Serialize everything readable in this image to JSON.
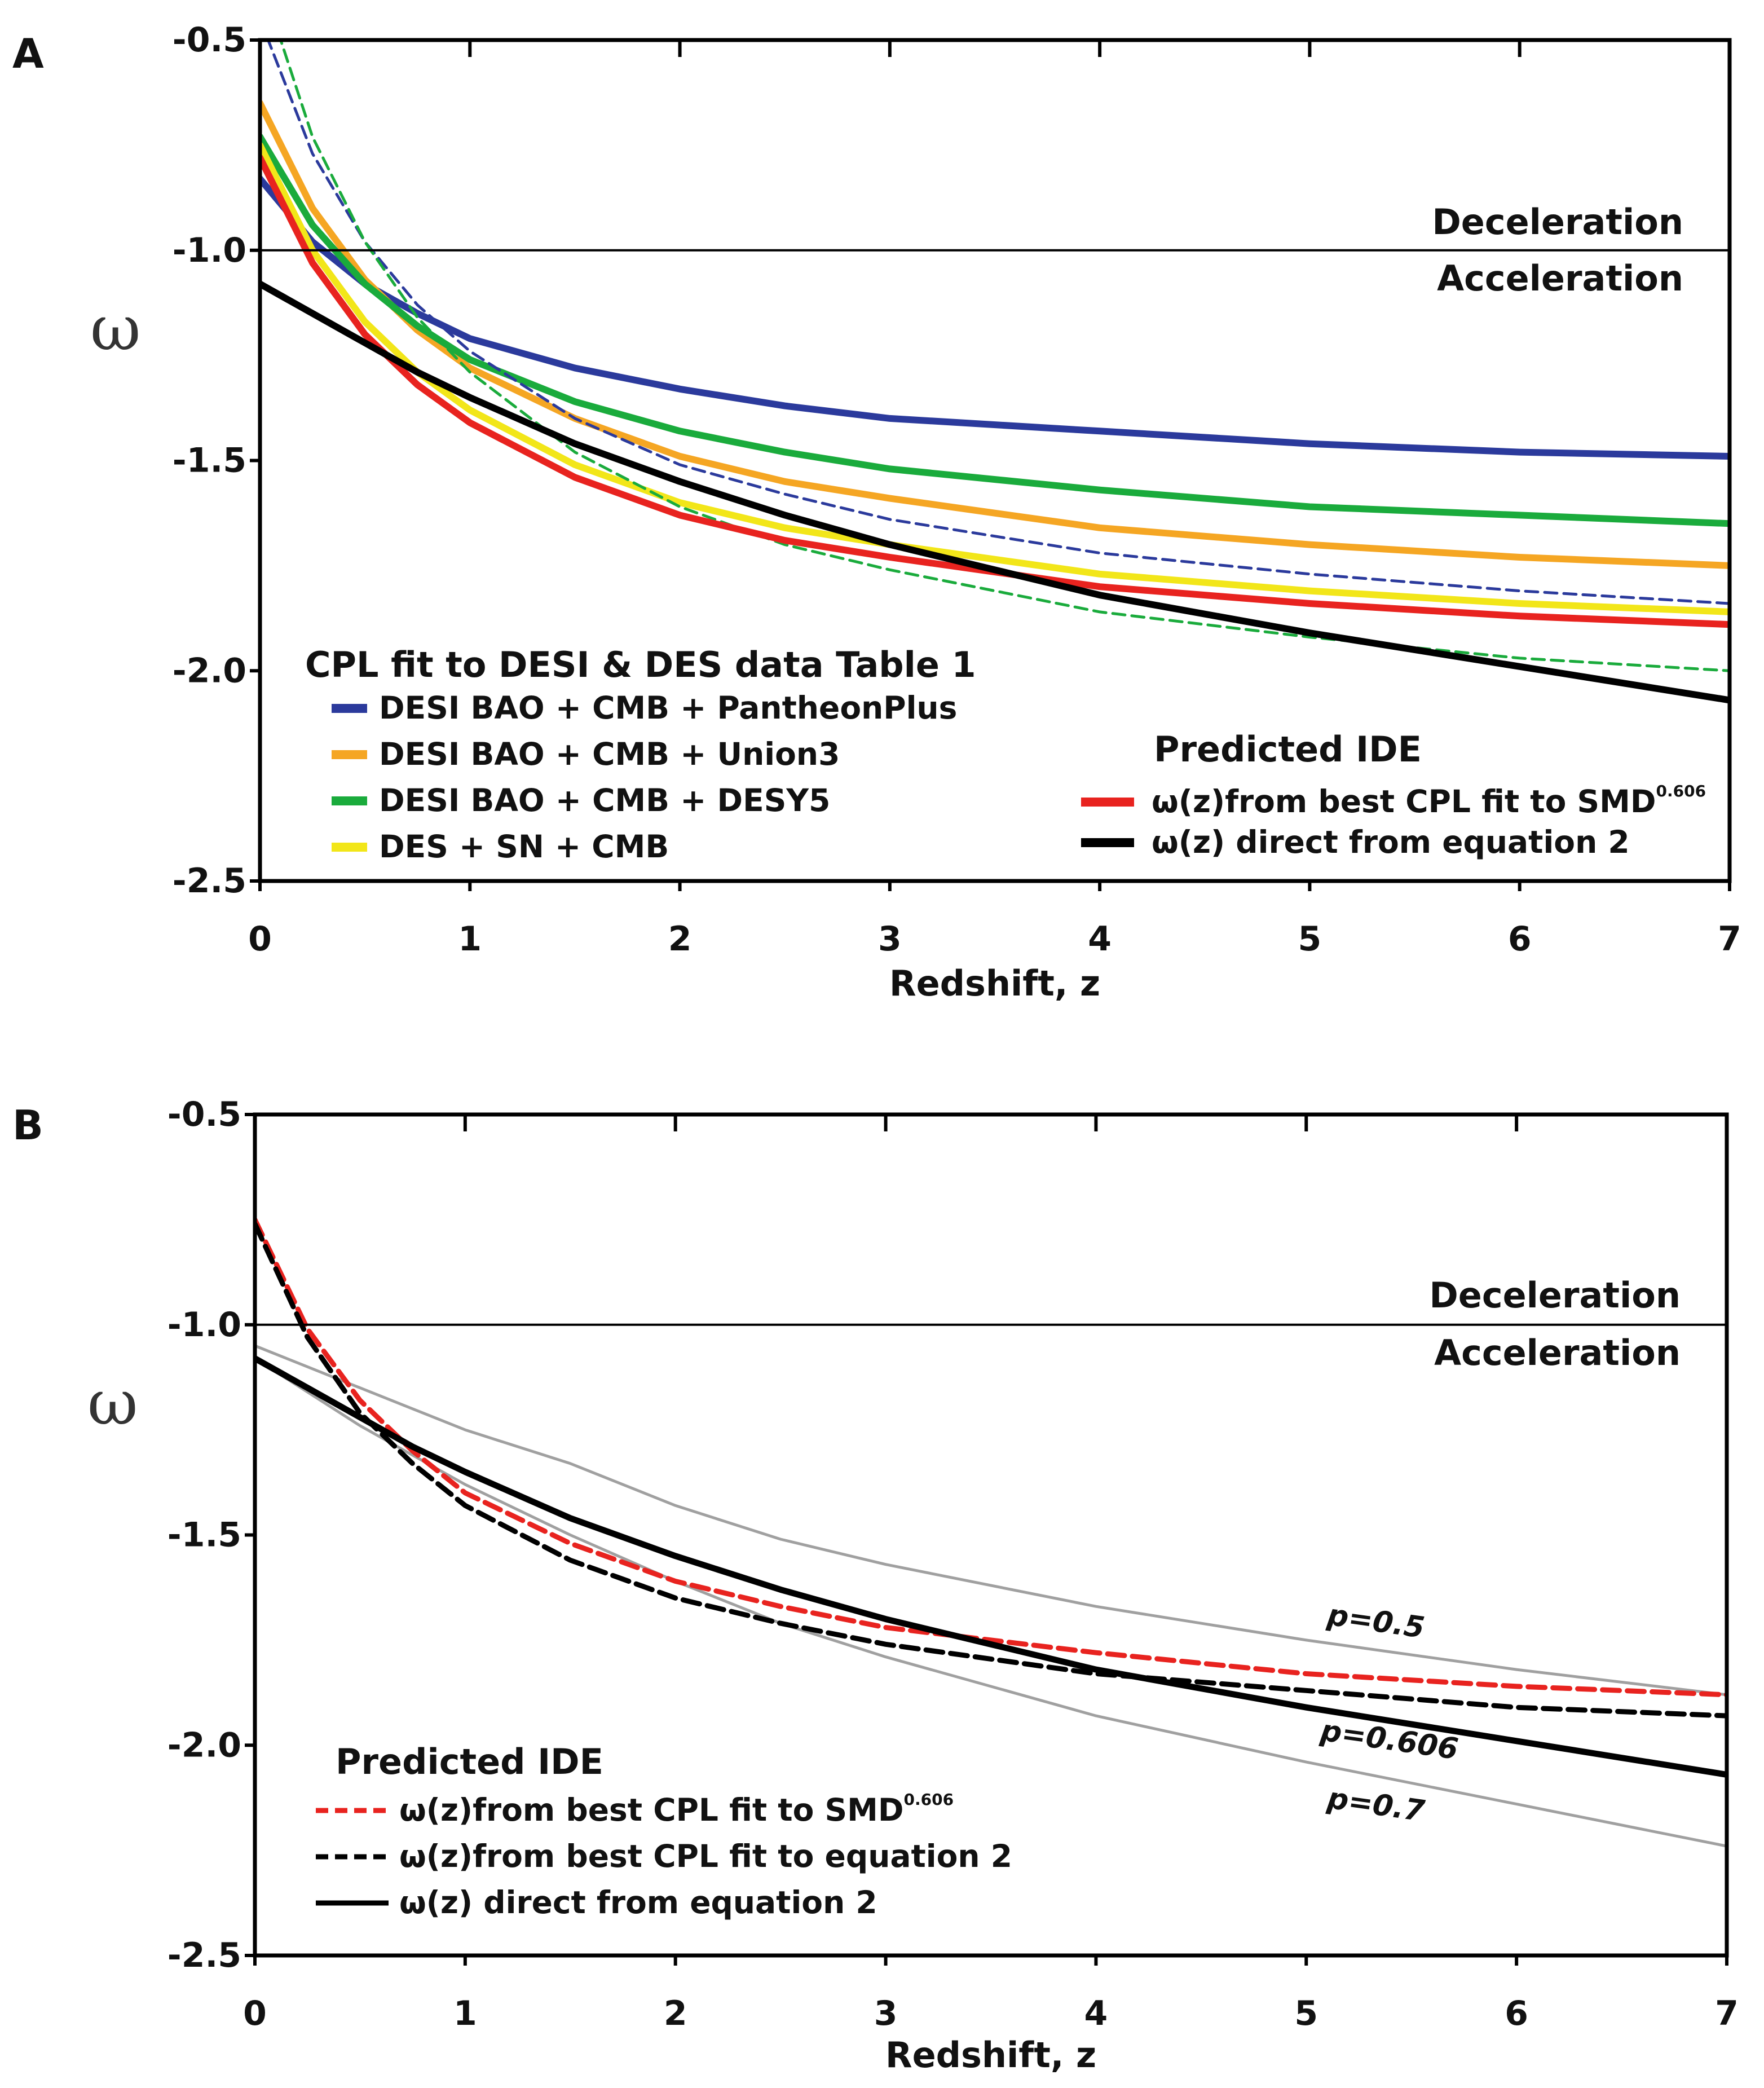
{
  "chart_data": [
    {
      "type": "line",
      "panel_label": "A",
      "xlabel": "Redshift,  z",
      "ylabel": "ω",
      "xlim": [
        0,
        7
      ],
      "ylim": [
        -2.5,
        -0.5
      ],
      "xticks": [
        "0",
        "1",
        "2",
        "3",
        "4",
        "5",
        "6",
        "7"
      ],
      "yticks": [
        "-0.5",
        "-1.0",
        "-1.5",
        "-2.0",
        "-2.5"
      ],
      "grid": false,
      "reference_line": {
        "y": -1.0,
        "above_label": "Deceleration",
        "below_label": "Acceleration"
      },
      "x": [
        0,
        0.25,
        0.5,
        0.75,
        1,
        1.5,
        2,
        2.5,
        3,
        4,
        5,
        6,
        7
      ],
      "legend_groups": [
        {
          "title": "CPL fit to DESI & DES data Table 1",
          "placement": "bottom-left"
        },
        {
          "title": "Predicted  IDE",
          "placement": "bottom-right"
        }
      ],
      "series": [
        {
          "name": "DESI BAO + CMB + PantheonPlus",
          "color": "#2b3a9c",
          "style": "solid",
          "legend": 0,
          "values": [
            -0.83,
            -0.98,
            -1.08,
            -1.15,
            -1.21,
            -1.28,
            -1.33,
            -1.37,
            -1.4,
            -1.43,
            -1.46,
            -1.48,
            -1.49
          ]
        },
        {
          "name": "DESI BAO + CMB + Union3",
          "color": "#f5a623",
          "style": "solid",
          "legend": 0,
          "values": [
            -0.65,
            -0.9,
            -1.07,
            -1.19,
            -1.28,
            -1.4,
            -1.49,
            -1.55,
            -1.59,
            -1.66,
            -1.7,
            -1.73,
            -1.75
          ]
        },
        {
          "name": "DESI BAO + CMB + DESY5",
          "color": "#1aab3c",
          "style": "solid",
          "legend": 0,
          "values": [
            -0.73,
            -0.94,
            -1.08,
            -1.18,
            -1.26,
            -1.36,
            -1.43,
            -1.48,
            -1.52,
            -1.57,
            -1.61,
            -1.63,
            -1.65
          ]
        },
        {
          "name": "DES + SN + CMB",
          "color": "#f2e619",
          "style": "solid",
          "legend": 0,
          "values": [
            -0.75,
            -1.0,
            -1.17,
            -1.29,
            -1.38,
            -1.51,
            -1.6,
            -1.66,
            -1.7,
            -1.77,
            -1.81,
            -1.84,
            -1.86
          ]
        },
        {
          "color": "#2b3a9c",
          "style": "dashed",
          "values": [
            -0.45,
            -0.77,
            -0.98,
            -1.13,
            -1.24,
            -1.4,
            -1.51,
            -1.58,
            -1.64,
            -1.72,
            -1.77,
            -1.81,
            -1.84
          ]
        },
        {
          "color": "#1aab3c",
          "style": "dashed",
          "values": [
            -0.35,
            -0.73,
            -0.98,
            -1.16,
            -1.29,
            -1.48,
            -1.61,
            -1.7,
            -1.76,
            -1.86,
            -1.92,
            -1.97,
            -2.0
          ]
        },
        {
          "name": "ω(z)from best CPL fit to SMD",
          "name_sup": "0.606",
          "color": "#e8231f",
          "style": "solid",
          "legend": 1,
          "values": [
            -0.78,
            -1.03,
            -1.2,
            -1.32,
            -1.41,
            -1.54,
            -1.63,
            -1.69,
            -1.73,
            -1.8,
            -1.84,
            -1.87,
            -1.89
          ]
        },
        {
          "name": "ω(z) direct from equation 2",
          "color": "#000000",
          "style": "solid",
          "legend": 1,
          "values": [
            -1.08,
            -1.15,
            -1.22,
            -1.29,
            -1.35,
            -1.46,
            -1.55,
            -1.63,
            -1.7,
            -1.82,
            -1.91,
            -1.99,
            -2.07
          ]
        }
      ]
    },
    {
      "type": "line",
      "panel_label": "B",
      "xlabel": "Redshift,  z",
      "ylabel": "ω",
      "xlim": [
        0,
        7
      ],
      "ylim": [
        -2.5,
        -0.5
      ],
      "xticks": [
        "0",
        "1",
        "2",
        "3",
        "4",
        "5",
        "6",
        "7"
      ],
      "yticks": [
        "-0.5",
        "-1.0",
        "-1.5",
        "-2.0",
        "-2.5"
      ],
      "grid": false,
      "reference_line": {
        "y": -1.0,
        "above_label": "Deceleration",
        "below_label": "Acceleration"
      },
      "x": [
        0,
        0.25,
        0.5,
        0.75,
        1,
        1.5,
        2,
        2.5,
        3,
        4,
        5,
        6,
        7
      ],
      "legend_groups": [
        {
          "title": "Predicted  IDE",
          "placement": "bottom-left"
        }
      ],
      "series": [
        {
          "color": "#a0a0a0",
          "style": "solid",
          "annotation": "p=0.5",
          "values": [
            -1.05,
            -1.1,
            -1.15,
            -1.2,
            -1.25,
            -1.33,
            -1.43,
            -1.51,
            -1.57,
            -1.67,
            -1.75,
            -1.82,
            -1.88
          ]
        },
        {
          "color": "#a0a0a0",
          "style": "solid",
          "annotation": "p=0.7",
          "values": [
            -1.08,
            -1.16,
            -1.24,
            -1.31,
            -1.38,
            -1.5,
            -1.61,
            -1.71,
            -1.79,
            -1.93,
            -2.04,
            -2.14,
            -2.24
          ]
        },
        {
          "name": "ω(z)from best CPL fit to SMD",
          "name_sup": "0.606",
          "color": "#e8231f",
          "style": "dashed",
          "legend": 0,
          "values": [
            -0.75,
            -1.01,
            -1.18,
            -1.3,
            -1.4,
            -1.52,
            -1.61,
            -1.67,
            -1.72,
            -1.78,
            -1.83,
            -1.86,
            -1.88
          ]
        },
        {
          "name": "ω(z)from best CPL fit to equation 2",
          "color": "#000000",
          "style": "dashed",
          "legend": 0,
          "values": [
            -0.76,
            -1.03,
            -1.21,
            -1.33,
            -1.43,
            -1.56,
            -1.65,
            -1.71,
            -1.76,
            -1.83,
            -1.87,
            -1.91,
            -1.93
          ]
        },
        {
          "name": "ω(z) direct from equation 2",
          "color": "#000000",
          "style": "solid",
          "legend": 0,
          "annotation": "p=0.606",
          "values": [
            -1.08,
            -1.15,
            -1.22,
            -1.29,
            -1.35,
            -1.46,
            -1.55,
            -1.63,
            -1.7,
            -1.82,
            -1.91,
            -1.99,
            -2.07
          ]
        }
      ]
    }
  ]
}
